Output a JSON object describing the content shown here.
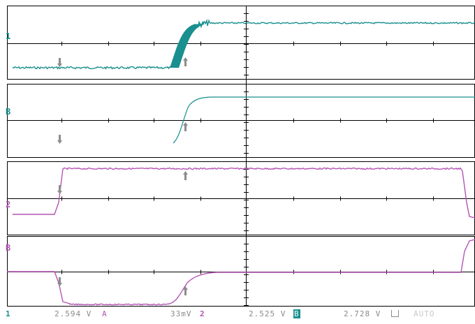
{
  "colors": {
    "teal": "#1a8f8f",
    "magenta": "#b455b4",
    "grid": "#000000",
    "marker": "#8c8c8c",
    "readout": "#8a8a8a",
    "auto": "#c8c8c8",
    "background": "#ffffff"
  },
  "channels": [
    {
      "label": "1",
      "color": "#1a8f8f"
    },
    {
      "label": "B",
      "color": "#1a8f8f"
    },
    {
      "label": "2",
      "color": "#b455b4"
    },
    {
      "label": "B",
      "color": "#b455b4"
    }
  ],
  "status_bar": {
    "ch1_marker": "1",
    "value_a": "2.594 V",
    "cursor_a": "A",
    "scale": "33mV",
    "ch2_marker": "2",
    "value_b": "2.525 V",
    "cursor_b": "B",
    "value_c": "2.728 V",
    "trigger_icon": "trigger-level-icon",
    "mode": "AUTO"
  }
}
